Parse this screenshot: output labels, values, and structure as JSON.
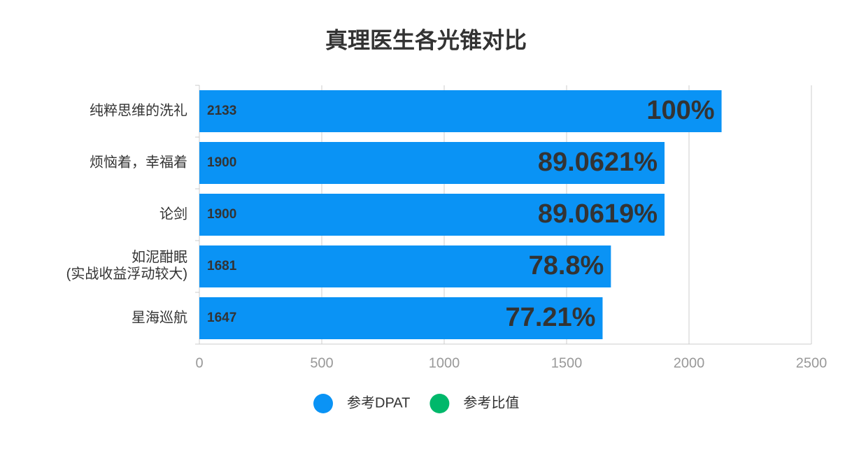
{
  "chart_data": {
    "type": "bar",
    "orientation": "horizontal",
    "title": "真理医生各光锥对比",
    "categories": [
      "纯粹思维的洗礼",
      "烦恼着，幸福着",
      "论剑",
      "如泥酣眠\n(实战收益浮动较大)",
      "星海巡航"
    ],
    "series": [
      {
        "name": "参考DPAT",
        "color": "#0a93f5",
        "values": [
          2133,
          1900,
          1900,
          1681,
          1647
        ]
      },
      {
        "name": "参考比值",
        "color": "#00b86b",
        "values": [
          100,
          89.0621,
          89.0619,
          78.8,
          77.21
        ],
        "value_labels": [
          "100%",
          "89.0621%",
          "89.0619%",
          "78.8%",
          "77.21%"
        ]
      }
    ],
    "xlim": [
      0,
      2500
    ],
    "xticks": [
      0,
      500,
      1000,
      1500,
      2000,
      2500
    ],
    "grid": true,
    "legend": "bottom"
  }
}
